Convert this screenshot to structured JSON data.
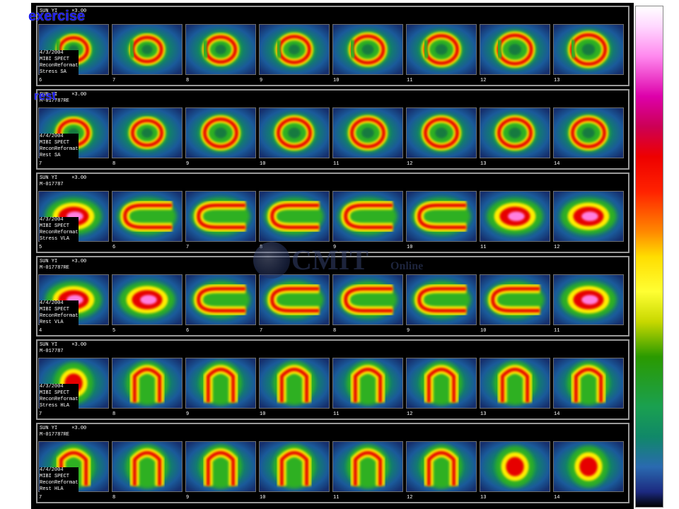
{
  "labels": {
    "exercise": "exercise",
    "rest": "rest"
  },
  "watermark": {
    "main": "CMIT",
    "sub": "Online"
  },
  "colorbar": {
    "colors": [
      "#ffffff",
      "#ff88ee",
      "#dd00aa",
      "#ee0000",
      "#ff8800",
      "#ffff33",
      "#2a9a00",
      "#1aa050",
      "#2a6ab0",
      "#000000"
    ]
  },
  "rows": [
    {
      "patient": "SUN YI",
      "scale": "×3.00",
      "id": "",
      "date": "4/3/2004",
      "method": "MIBI SPECT",
      "recon": "ReconReformat",
      "view": "Stress SA",
      "slices": [
        "6",
        "7",
        "8",
        "9",
        "10",
        "11",
        "12",
        "13"
      ]
    },
    {
      "patient": "SUN YI",
      "scale": "×3.00",
      "id": "M-017787RE",
      "date": "4/4/2004",
      "method": "MIBI SPECT",
      "recon": "ReconReformat",
      "view": "Rest SA",
      "slices": [
        "7",
        "8",
        "9",
        "10",
        "11",
        "12",
        "13",
        "14"
      ]
    },
    {
      "patient": "SUN YI",
      "scale": "×3.00",
      "id": "M-017787",
      "date": "4/3/2004",
      "method": "MIBI SPECT",
      "recon": "ReconReformat",
      "view": "Stress VLA",
      "slices": [
        "5",
        "6",
        "7",
        "8",
        "9",
        "10",
        "11",
        "12"
      ]
    },
    {
      "patient": "SUN YI",
      "scale": "×3.00",
      "id": "M-017787RE",
      "date": "4/4/2004",
      "method": "MIBI SPECT",
      "recon": "ReconReformat",
      "view": "Rest VLA",
      "slices": [
        "4",
        "5",
        "6",
        "7",
        "8",
        "9",
        "10",
        "11"
      ]
    },
    {
      "patient": "SUN YI",
      "scale": "×3.00",
      "id": "M-017787",
      "date": "4/3/2004",
      "method": "MIBI SPECT",
      "recon": "ReconReformat",
      "view": "Stress HLA",
      "slices": [
        "7",
        "8",
        "9",
        "10",
        "11",
        "12",
        "13",
        "14"
      ]
    },
    {
      "patient": "SUN YI",
      "scale": "×3.00",
      "id": "M-017787RE",
      "date": "4/4/2004",
      "method": "MIBI SPECT",
      "recon": "ReconReformat",
      "view": "Rest HLA",
      "slices": [
        "7",
        "8",
        "9",
        "10",
        "11",
        "12",
        "13",
        "14"
      ]
    }
  ]
}
